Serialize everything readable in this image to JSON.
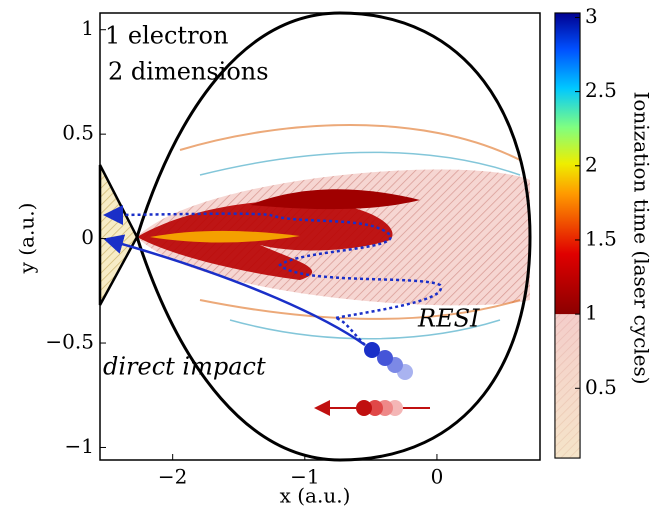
{
  "chart_data": {
    "type": "map",
    "xlabel": "x (a.u.)",
    "ylabel": "y (a.u.)",
    "xlim": [
      -2.55,
      0.78
    ],
    "ylim": [
      -1.06,
      1.08
    ],
    "xticks": [
      {
        "value": -2,
        "label": "−2"
      },
      {
        "value": -1,
        "label": "−1"
      },
      0
    ],
    "yticks": [
      {
        "value": -1,
        "label": "−1"
      },
      {
        "value": -0.5,
        "label": "−0.5"
      },
      0,
      0.5,
      1
    ],
    "annotations": [
      "1 electron",
      "2 dimensions",
      "direct impact",
      "RESI"
    ],
    "colorbar": {
      "label": "Ionization time (laser cycles)",
      "lim": [
        0.03,
        3.03
      ],
      "ticks": [
        0.5,
        1,
        1.5,
        2,
        2.5,
        3
      ]
    }
  }
}
